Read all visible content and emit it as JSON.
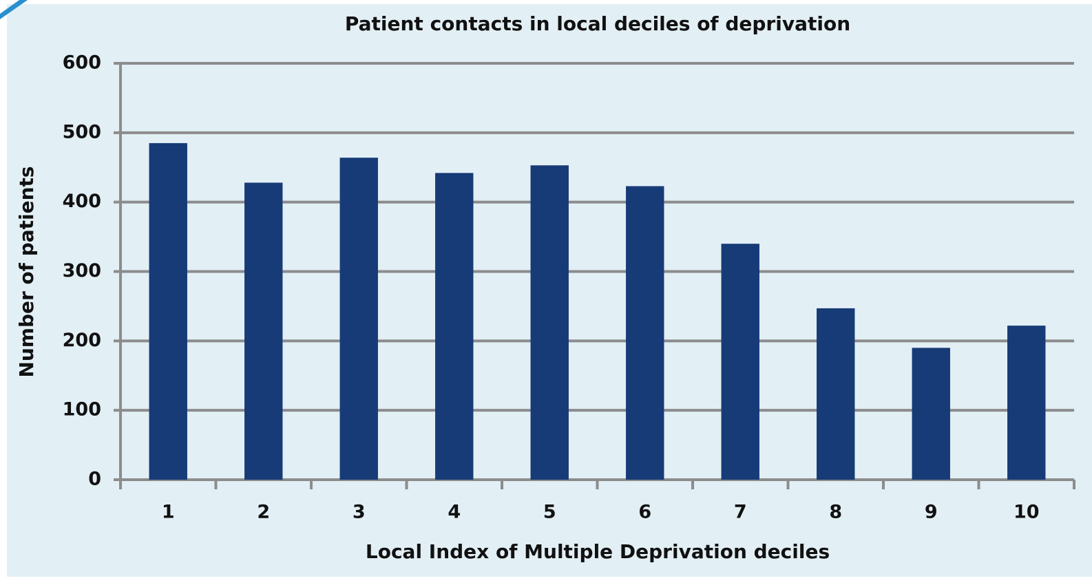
{
  "chart_data": {
    "type": "bar",
    "title": "Patient contacts in local deciles of deprivation",
    "x_label": "Local Index of Multiple Deprivation deciles",
    "y_label": "Number of patients",
    "categories": [
      "1",
      "2",
      "3",
      "4",
      "5",
      "6",
      "7",
      "8",
      "9",
      "10"
    ],
    "values": [
      485,
      428,
      464,
      442,
      453,
      423,
      340,
      247,
      190,
      222
    ],
    "color": "#173b77",
    "ylim": [
      0,
      600
    ],
    "yticks": [
      0,
      100,
      200,
      300,
      400,
      500,
      600
    ],
    "grid": true
  }
}
